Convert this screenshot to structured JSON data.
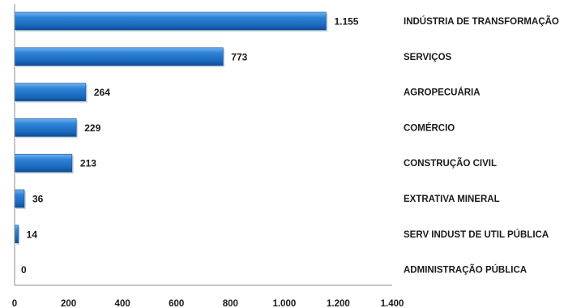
{
  "chart_data": {
    "type": "bar",
    "orientation": "horizontal",
    "categories": [
      "INDÚSTRIA DE TRANSFORMAÇÃO",
      "SERVIÇOS",
      "AGROPECUÁRIA",
      "COMÉRCIO",
      "CONSTRUÇÃO CIVIL",
      "EXTRATIVA MINERAL",
      "SERV INDUST DE UTIL PÚBLICA",
      "ADMINISTRAÇÃO PÚBLICA"
    ],
    "values": [
      1155,
      773,
      264,
      229,
      213,
      36,
      14,
      0
    ],
    "value_labels": [
      "1.155",
      "773",
      "264",
      "229",
      "213",
      "36",
      "14",
      "0"
    ],
    "xlim": [
      0,
      1400
    ],
    "x_ticks": [
      0,
      200,
      400,
      600,
      800,
      1000,
      1200,
      1400
    ],
    "x_tick_labels": [
      "0",
      "200",
      "400",
      "600",
      "800",
      "1.000",
      "1.200",
      "1.400"
    ],
    "title": "",
    "xlabel": "",
    "ylabel": "",
    "grid": false,
    "legend": "none",
    "colors": {
      "bar": "#1f73c7",
      "bar_light": "#5aa5ec",
      "bar_dark": "#0f4f99",
      "axis": "#8c8c8c",
      "text": "#1a1a1a"
    }
  }
}
